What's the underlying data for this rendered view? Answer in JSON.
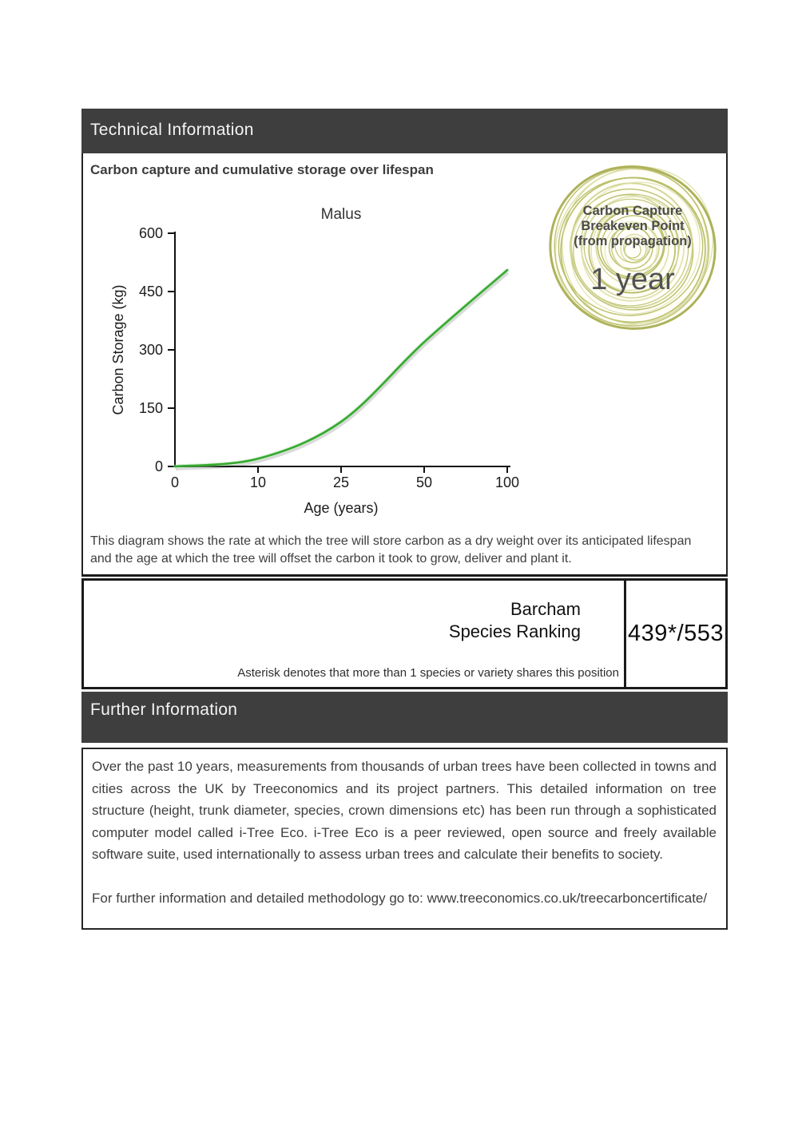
{
  "technical_section": {
    "title": "Technical Information",
    "chart_heading": "Carbon capture and cumulative storage over lifespan",
    "description": "This diagram shows the rate at which the tree will store carbon as a dry weight over its anticipated lifespan and the age at which the tree will offset the carbon it took to grow, deliver and plant it."
  },
  "breakeven_badge": {
    "title_line1": "Carbon Capture",
    "title_line2": "Breakeven Point",
    "title_line3": "(from propagation)",
    "value": "1 year"
  },
  "chart_data": {
    "type": "line",
    "title": "Malus",
    "xlabel": "Age (years)",
    "ylabel": "Carbon Storage (kg)",
    "x": [
      0,
      10,
      25,
      50,
      100
    ],
    "values": [
      0,
      20,
      115,
      320,
      505
    ],
    "x_ticks": [
      0,
      10,
      25,
      50,
      100
    ],
    "y_ticks": [
      0,
      150,
      300,
      450,
      600
    ],
    "ylim": [
      0,
      600
    ],
    "x_axis_note": "tick positions evenly spaced (non-linear age axis)",
    "grid": false,
    "legend": false,
    "line_color": "#35a82f"
  },
  "ranking": {
    "org_line1": "Barcham",
    "org_line2": "Species Ranking",
    "value": "439*/553",
    "footnote": "Asterisk denotes that more than 1 species or variety shares this position"
  },
  "further_section": {
    "title": "Further Information",
    "paragraph": "Over the past 10 years, measurements from thousands of urban trees have been collected in towns and cities across the UK by Treeconomics and its project partners. This detailed information on tree structure (height, trunk diameter, species, crown dimensions etc) has been run through a sophisticated computer model called i-Tree Eco. i-Tree Eco is a peer reviewed, open source and freely available software suite, used internationally to assess urban trees and calculate their benefits to society.",
    "link_line": "For further information and detailed methodology go to: www.treeconomics.co.uk/treecarboncertificate/"
  },
  "colors": {
    "bar_background": "#3e3e3e",
    "bar_text": "#f4f4f4",
    "border_dark": "#1a1a1a",
    "body_text": "#3e3e3e",
    "curve_green": "#35a82f",
    "curve_glow": "#a5d99f",
    "curve_shadow": "#d2d2d2",
    "ring_olive": "#b6ba60",
    "ring_olive_light": "#cbcf86",
    "ring_olive_pale": "#dde0ac",
    "ring_outer": "#a9ae52",
    "badge_text": "#4b4b4b"
  }
}
